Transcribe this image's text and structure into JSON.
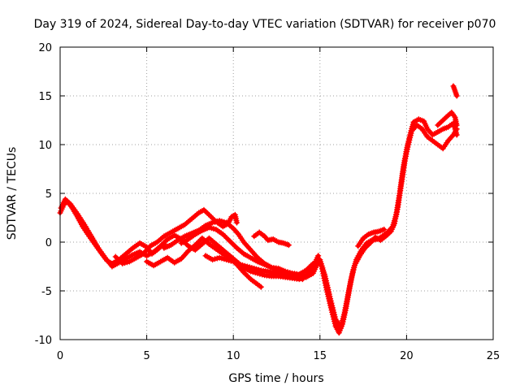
{
  "chart_data": {
    "type": "scatter",
    "title": "Day 319 of 2024, Sidereal Day-to-day VTEC variation (SDTVAR) for receiver p070",
    "xlabel": "GPS time / hours",
    "ylabel": "SDTVAR / TECUs",
    "xlim": [
      0,
      25
    ],
    "ylim": [
      -10,
      20
    ],
    "xticks": [
      0,
      5,
      10,
      15,
      20,
      25
    ],
    "yticks": [
      -10,
      -5,
      0,
      5,
      10,
      15,
      20
    ],
    "grid": true,
    "marker": "plus",
    "color": "#ff0000",
    "series": [
      {
        "values": [
          [
            0.0,
            3.0
          ],
          [
            0.2,
            3.8
          ],
          [
            0.4,
            4.2
          ],
          [
            0.7,
            3.5
          ],
          [
            1.0,
            2.6
          ],
          [
            1.3,
            1.6
          ],
          [
            1.6,
            0.8
          ],
          [
            2.0,
            -0.2
          ],
          [
            2.4,
            -1.2
          ],
          [
            2.7,
            -1.9
          ],
          [
            3.0,
            -2.2
          ],
          [
            3.4,
            -1.8
          ],
          [
            3.8,
            -1.2
          ],
          [
            4.2,
            -0.6
          ],
          [
            4.6,
            -0.1
          ],
          [
            5.0,
            -0.5
          ],
          [
            5.3,
            -1.2
          ],
          [
            5.6,
            -0.8
          ],
          [
            6.0,
            -0.2
          ]
        ]
      },
      {
        "values": [
          [
            0.05,
            3.5
          ],
          [
            0.3,
            4.4
          ],
          [
            0.6,
            3.9
          ],
          [
            1.0,
            2.9
          ],
          [
            1.4,
            1.8
          ],
          [
            1.8,
            0.6
          ],
          [
            2.2,
            -0.6
          ],
          [
            2.6,
            -1.6
          ],
          [
            3.0,
            -2.5
          ],
          [
            3.4,
            -2.1
          ],
          [
            3.8,
            -1.7
          ],
          [
            4.2,
            -1.3
          ],
          [
            4.6,
            -1.0
          ],
          [
            5.0,
            -1.4
          ],
          [
            5.4,
            -1.0
          ],
          [
            5.8,
            -0.4
          ],
          [
            6.2,
            0.3
          ],
          [
            6.6,
            0.7
          ],
          [
            7.0,
            0.3
          ],
          [
            7.4,
            -0.4
          ],
          [
            7.8,
            -0.8
          ],
          [
            8.2,
            -0.2
          ],
          [
            8.6,
            0.4
          ],
          [
            9.0,
            -0.2
          ],
          [
            9.4,
            -0.8
          ],
          [
            9.8,
            -1.4
          ],
          [
            10.2,
            -2.0
          ],
          [
            10.6,
            -2.6
          ],
          [
            11.0,
            -3.0
          ],
          [
            11.4,
            -3.2
          ],
          [
            11.8,
            -3.4
          ],
          [
            12.2,
            -3.5
          ],
          [
            12.6,
            -3.5
          ],
          [
            13.0,
            -3.6
          ],
          [
            13.4,
            -3.7
          ],
          [
            13.8,
            -3.8
          ],
          [
            14.2,
            -3.6
          ],
          [
            14.6,
            -3.2
          ],
          [
            14.9,
            -2.0
          ],
          [
            15.1,
            -2.5
          ],
          [
            15.3,
            -4.2
          ],
          [
            15.6,
            -6.5
          ],
          [
            15.9,
            -8.6
          ],
          [
            16.1,
            -9.3
          ],
          [
            16.3,
            -8.4
          ],
          [
            16.5,
            -6.8
          ],
          [
            16.7,
            -4.8
          ],
          [
            16.9,
            -3.0
          ],
          [
            17.1,
            -1.8
          ],
          [
            17.4,
            -0.8
          ],
          [
            17.7,
            -0.1
          ],
          [
            18.0,
            0.2
          ],
          [
            18.3,
            0.3
          ],
          [
            18.6,
            0.6
          ],
          [
            18.9,
            1.0
          ],
          [
            19.2,
            1.6
          ],
          [
            19.4,
            2.8
          ],
          [
            19.6,
            5.0
          ],
          [
            19.8,
            7.5
          ],
          [
            20.0,
            9.5
          ],
          [
            20.2,
            11.0
          ],
          [
            20.4,
            12.3
          ],
          [
            20.7,
            12.6
          ],
          [
            21.0,
            12.4
          ],
          [
            21.2,
            11.6
          ],
          [
            21.5,
            11.0
          ],
          [
            21.8,
            11.3
          ],
          [
            22.1,
            11.6
          ],
          [
            22.4,
            11.8
          ],
          [
            22.7,
            12.2
          ],
          [
            22.9,
            11.0
          ]
        ]
      },
      {
        "values": [
          [
            3.2,
            -1.5
          ],
          [
            3.6,
            -2.2
          ],
          [
            4.0,
            -2.0
          ],
          [
            4.4,
            -1.6
          ],
          [
            4.8,
            -1.2
          ],
          [
            5.2,
            -0.4
          ],
          [
            5.6,
            0.0
          ],
          [
            6.0,
            0.6
          ],
          [
            6.4,
            1.0
          ],
          [
            6.8,
            1.4
          ],
          [
            7.2,
            1.8
          ],
          [
            7.6,
            2.4
          ],
          [
            8.0,
            3.0
          ],
          [
            8.3,
            3.3
          ],
          [
            8.6,
            2.8
          ],
          [
            9.0,
            2.1
          ],
          [
            9.4,
            1.6
          ],
          [
            9.7,
            1.9
          ],
          [
            9.9,
            2.6
          ],
          [
            10.1,
            2.8
          ],
          [
            10.2,
            2.0
          ]
        ]
      },
      {
        "values": [
          [
            6.0,
            -0.6
          ],
          [
            6.4,
            -0.3
          ],
          [
            6.8,
            0.2
          ],
          [
            7.2,
            0.6
          ],
          [
            7.6,
            0.9
          ],
          [
            8.0,
            1.2
          ],
          [
            8.4,
            1.7
          ],
          [
            8.8,
            2.0
          ],
          [
            9.2,
            2.2
          ],
          [
            9.6,
            2.0
          ],
          [
            10.0,
            1.4
          ],
          [
            10.3,
            0.8
          ],
          [
            10.6,
            0.0
          ],
          [
            11.0,
            -0.8
          ],
          [
            11.4,
            -1.6
          ],
          [
            11.8,
            -2.2
          ],
          [
            12.2,
            -2.6
          ],
          [
            12.6,
            -3.0
          ],
          [
            13.0,
            -3.2
          ],
          [
            13.4,
            -3.4
          ],
          [
            13.8,
            -3.6
          ],
          [
            14.2,
            -3.4
          ],
          [
            14.6,
            -2.6
          ],
          [
            14.9,
            -1.4
          ]
        ]
      },
      {
        "values": [
          [
            7.0,
            -0.1
          ],
          [
            7.4,
            0.3
          ],
          [
            7.8,
            0.8
          ],
          [
            8.2,
            1.2
          ],
          [
            8.6,
            1.5
          ],
          [
            9.0,
            1.3
          ],
          [
            9.4,
            0.8
          ],
          [
            9.8,
            0.1
          ],
          [
            10.2,
            -0.6
          ],
          [
            10.6,
            -1.2
          ],
          [
            11.0,
            -1.6
          ],
          [
            11.4,
            -2.0
          ],
          [
            11.8,
            -2.3
          ],
          [
            12.2,
            -2.6
          ],
          [
            12.6,
            -2.7
          ],
          [
            13.0,
            -3.0
          ],
          [
            13.4,
            -3.2
          ],
          [
            13.8,
            -3.3
          ],
          [
            14.2,
            -2.9
          ],
          [
            14.6,
            -2.2
          ]
        ]
      },
      {
        "values": [
          [
            11.2,
            0.6
          ],
          [
            11.5,
            1.0
          ],
          [
            11.8,
            0.6
          ],
          [
            12.0,
            0.2
          ],
          [
            12.3,
            0.3
          ],
          [
            12.6,
            0.0
          ],
          [
            12.9,
            -0.1
          ],
          [
            13.2,
            -0.3
          ]
        ]
      },
      {
        "values": [
          [
            5.0,
            -2.0
          ],
          [
            5.4,
            -2.4
          ],
          [
            5.8,
            -2.0
          ],
          [
            6.2,
            -1.6
          ],
          [
            6.6,
            -2.1
          ],
          [
            7.0,
            -1.7
          ],
          [
            7.4,
            -0.9
          ],
          [
            7.8,
            -0.3
          ],
          [
            8.2,
            0.4
          ],
          [
            8.6,
            -0.2
          ],
          [
            9.0,
            -0.7
          ],
          [
            9.4,
            -1.2
          ],
          [
            9.8,
            -1.6
          ],
          [
            10.2,
            -2.3
          ],
          [
            10.6,
            -3.1
          ],
          [
            11.0,
            -3.8
          ],
          [
            11.3,
            -4.2
          ],
          [
            11.6,
            -4.6
          ]
        ]
      },
      {
        "values": [
          [
            8.4,
            -1.4
          ],
          [
            8.8,
            -1.8
          ],
          [
            9.2,
            -1.6
          ],
          [
            9.6,
            -1.8
          ],
          [
            10.0,
            -2.0
          ],
          [
            10.4,
            -2.3
          ],
          [
            10.8,
            -2.5
          ],
          [
            11.2,
            -2.7
          ],
          [
            11.6,
            -2.9
          ],
          [
            12.0,
            -3.0
          ],
          [
            12.4,
            -3.2
          ],
          [
            12.8,
            -3.3
          ],
          [
            13.2,
            -3.4
          ],
          [
            13.6,
            -3.6
          ],
          [
            14.0,
            -3.8
          ]
        ]
      },
      {
        "values": [
          [
            15.0,
            -1.8
          ],
          [
            15.3,
            -3.5
          ],
          [
            15.6,
            -5.8
          ],
          [
            15.9,
            -7.9
          ],
          [
            16.2,
            -8.7
          ],
          [
            16.4,
            -7.4
          ],
          [
            16.6,
            -5.6
          ],
          [
            16.8,
            -3.8
          ],
          [
            17.0,
            -2.4
          ],
          [
            17.3,
            -1.4
          ],
          [
            17.6,
            -0.6
          ],
          [
            17.9,
            -0.1
          ],
          [
            18.2,
            0.5
          ],
          [
            18.5,
            0.2
          ],
          [
            18.8,
            0.6
          ],
          [
            19.1,
            1.1
          ],
          [
            19.3,
            1.9
          ],
          [
            19.5,
            3.6
          ],
          [
            19.7,
            6.0
          ],
          [
            19.9,
            8.3
          ],
          [
            20.1,
            10.0
          ],
          [
            20.3,
            11.4
          ],
          [
            20.6,
            12.0
          ],
          [
            20.9,
            11.6
          ],
          [
            21.2,
            10.8
          ],
          [
            21.5,
            10.4
          ],
          [
            21.8,
            10.0
          ],
          [
            22.1,
            9.6
          ],
          [
            22.4,
            10.4
          ],
          [
            22.7,
            11.0
          ],
          [
            22.9,
            11.6
          ]
        ]
      },
      {
        "values": [
          [
            17.2,
            -0.4
          ],
          [
            17.5,
            0.4
          ],
          [
            17.8,
            0.8
          ],
          [
            18.1,
            1.0
          ],
          [
            18.4,
            1.1
          ],
          [
            18.7,
            1.3
          ]
        ]
      },
      {
        "values": [
          [
            22.7,
            16.0
          ],
          [
            22.8,
            15.5
          ],
          [
            22.9,
            15.0
          ]
        ]
      },
      {
        "values": [
          [
            21.8,
            12.0
          ],
          [
            22.1,
            12.5
          ],
          [
            22.4,
            13.0
          ],
          [
            22.6,
            13.3
          ],
          [
            22.8,
            12.8
          ],
          [
            22.9,
            12.0
          ]
        ]
      }
    ]
  }
}
